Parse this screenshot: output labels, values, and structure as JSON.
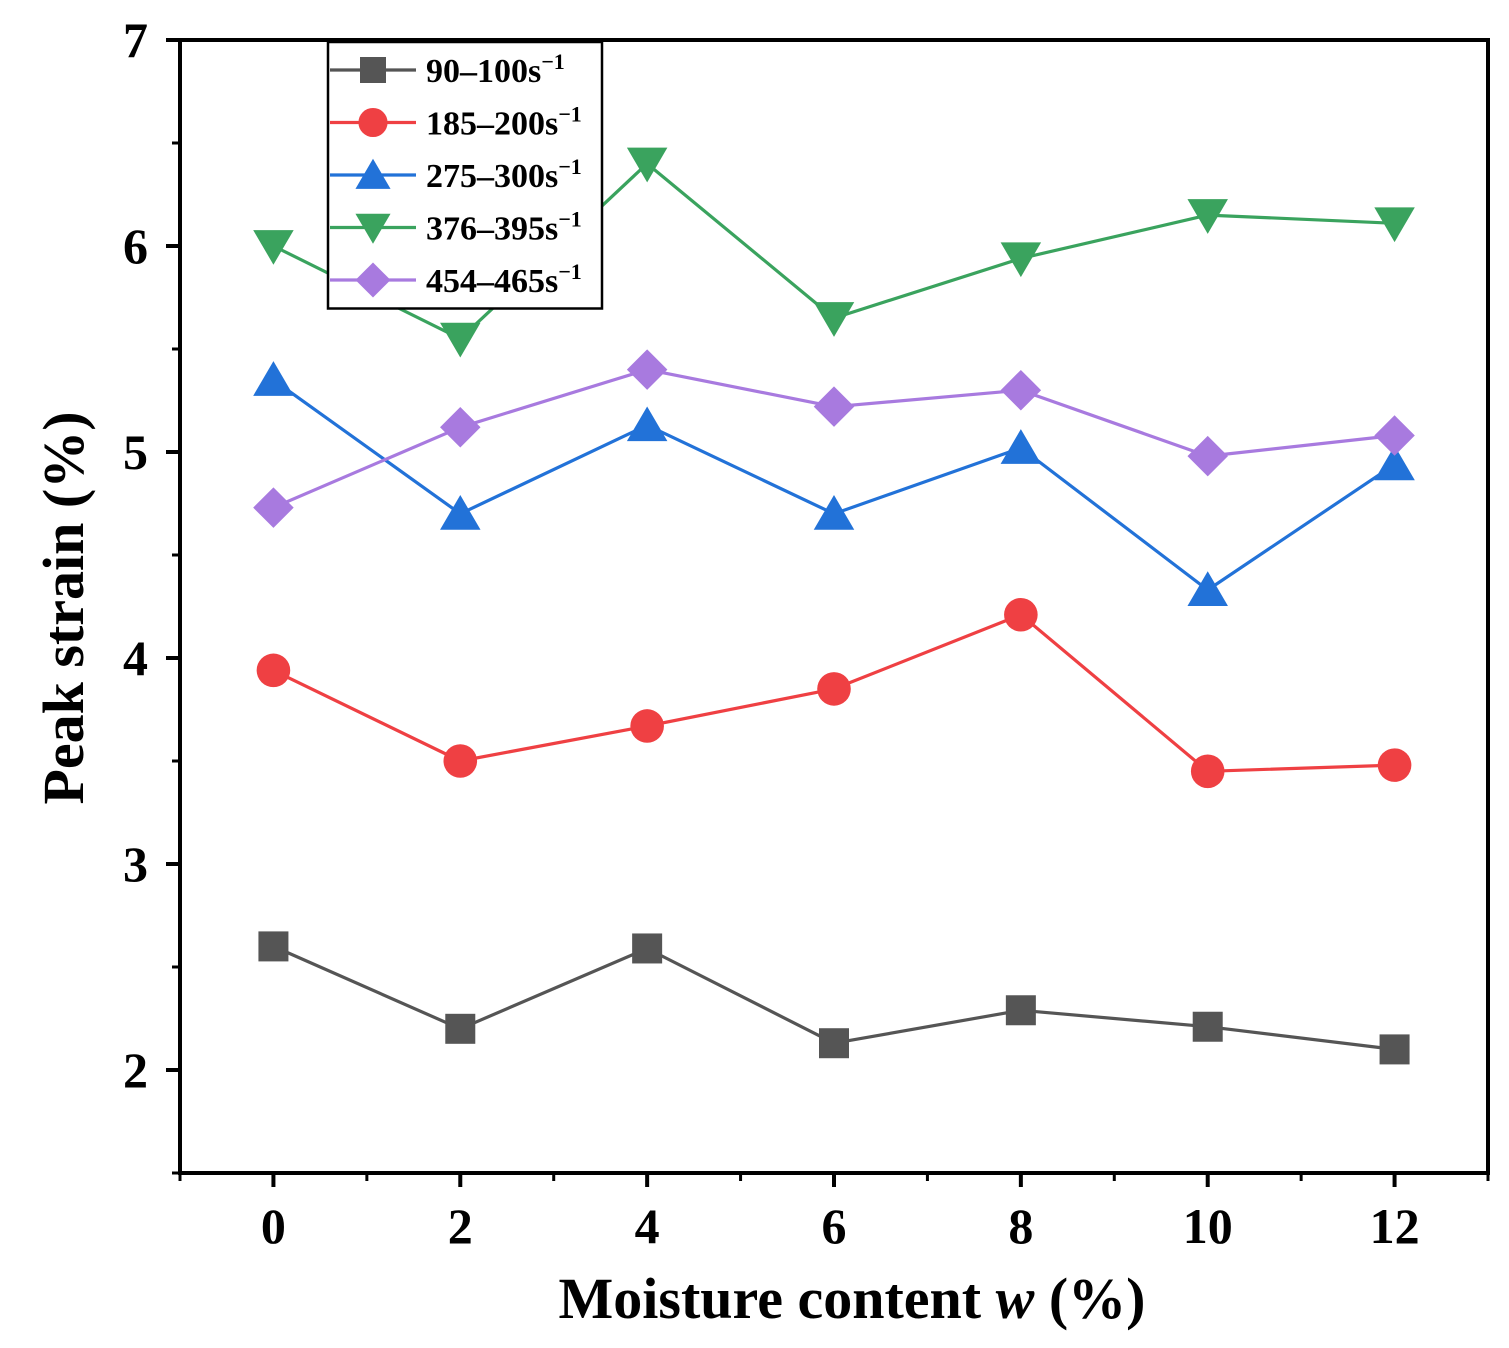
{
  "chart_data": {
    "type": "line",
    "title": "",
    "xlabel": "Moisture content w (%)",
    "xlabel_parts": {
      "before": "Moisture content ",
      "italic": "w",
      "after": " (%)"
    },
    "ylabel": "Peak strain (%)",
    "x": [
      0,
      2,
      4,
      6,
      8,
      10,
      12
    ],
    "xlim": [
      -1,
      13
    ],
    "ylim": [
      1.5,
      7
    ],
    "x_ticks": [
      0,
      2,
      4,
      6,
      8,
      10,
      12
    ],
    "x_tick_labels": [
      "0",
      "2",
      "4",
      "6",
      "8",
      "10",
      "12"
    ],
    "y_ticks": [
      2,
      3,
      4,
      5,
      6,
      7
    ],
    "y_tick_labels": [
      "2",
      "3",
      "4",
      "5",
      "6",
      "7"
    ],
    "grid": false,
    "legend_position": "top-left",
    "series": [
      {
        "name": "90–100s",
        "sup": "−1",
        "marker": "square",
        "color": "#555555",
        "values": [
          2.6,
          2.2,
          2.59,
          2.13,
          2.29,
          2.21,
          2.1
        ]
      },
      {
        "name": "185–200s",
        "sup": "−1",
        "marker": "circle",
        "color": "#ef4043",
        "values": [
          3.94,
          3.5,
          3.67,
          3.85,
          4.21,
          3.45,
          3.48
        ]
      },
      {
        "name": "275–300s",
        "sup": "−1",
        "marker": "triangle-up",
        "color": "#2272d8",
        "values": [
          5.35,
          4.7,
          5.13,
          4.7,
          5.02,
          4.33,
          4.94
        ]
      },
      {
        "name": "376–395s",
        "sup": "−1",
        "marker": "triangle-down",
        "color": "#3aa35e",
        "values": [
          6.0,
          5.55,
          6.4,
          5.65,
          5.94,
          6.15,
          6.11
        ]
      },
      {
        "name": "454–465s",
        "sup": "−1",
        "marker": "diamond",
        "color": "#a87adf",
        "values": [
          4.73,
          5.12,
          5.4,
          5.22,
          5.3,
          4.98,
          5.08
        ]
      }
    ]
  }
}
